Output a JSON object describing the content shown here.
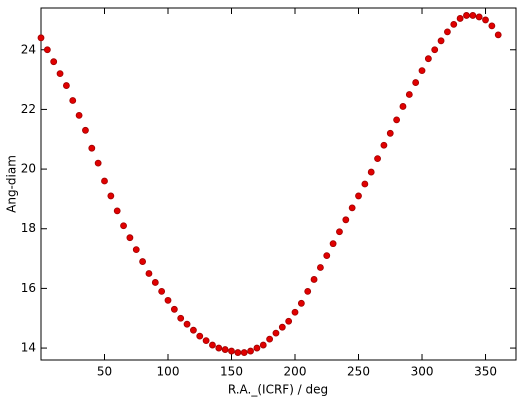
{
  "chart_data": {
    "type": "scatter",
    "x_label": "R.A._(ICRF) / deg",
    "y_label": "Ang-diam",
    "xlim": [
      0,
      374
    ],
    "ylim": [
      13.6,
      25.4
    ],
    "xticks": [
      50,
      100,
      150,
      200,
      250,
      300,
      350
    ],
    "yticks": [
      14,
      16,
      18,
      20,
      22,
      24
    ],
    "color": "#e00000",
    "x": [
      0,
      5,
      10,
      15,
      20,
      25,
      30,
      35,
      40,
      45,
      50,
      55,
      60,
      65,
      70,
      75,
      80,
      85,
      90,
      95,
      100,
      105,
      110,
      115,
      120,
      125,
      130,
      135,
      140,
      145,
      150,
      155,
      160,
      165,
      170,
      175,
      180,
      185,
      190,
      195,
      200,
      205,
      210,
      215,
      220,
      225,
      230,
      235,
      240,
      245,
      250,
      255,
      260,
      265,
      270,
      275,
      280,
      285,
      290,
      295,
      300,
      305,
      310,
      315,
      320,
      325,
      330,
      335,
      340,
      345,
      350,
      355,
      360
    ],
    "values": [
      24.4,
      24.0,
      23.6,
      23.2,
      22.8,
      22.3,
      21.8,
      21.3,
      20.7,
      20.2,
      19.6,
      19.1,
      18.6,
      18.1,
      17.7,
      17.3,
      16.9,
      16.5,
      16.2,
      15.9,
      15.6,
      15.3,
      15.0,
      14.8,
      14.6,
      14.4,
      14.25,
      14.1,
      14.0,
      13.95,
      13.9,
      13.85,
      13.85,
      13.9,
      14.0,
      14.1,
      14.3,
      14.5,
      14.7,
      14.9,
      15.2,
      15.5,
      15.9,
      16.3,
      16.7,
      17.1,
      17.5,
      17.9,
      18.3,
      18.7,
      19.1,
      19.5,
      19.9,
      20.35,
      20.8,
      21.2,
      21.65,
      22.1,
      22.5,
      22.9,
      23.3,
      23.7,
      24.0,
      24.3,
      24.6,
      24.85,
      25.05,
      25.15,
      25.15,
      25.1,
      25.0,
      24.8,
      24.5
    ]
  }
}
